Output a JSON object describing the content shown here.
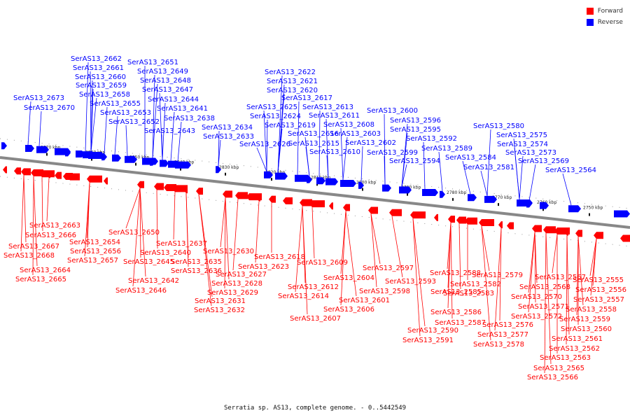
{
  "legend": {
    "forward": {
      "label": "Forward",
      "color": "#ff0000"
    },
    "reverse": {
      "label": "Reverse",
      "color": "#0000ff"
    }
  },
  "caption": "Serratia sp. AS13, complete genome. - 0..5442549",
  "axis": {
    "backbone_color": "#888888",
    "ticks": [
      "2870 kbp",
      "2860 kbp",
      "2850 kbp",
      "2840 kbp",
      "2830 kbp",
      "2820 kbp",
      "2810 kbp",
      "2800 kbp",
      "2790 kbp",
      "2780 kbp",
      "2770 kbp",
      "2760 kbp",
      "2750 kbp"
    ]
  },
  "reverse_genes": [
    "SerAS13_2662",
    "SerAS13_2661",
    "SerAS13_2660",
    "SerAS13_2659",
    "SerAS13_2658",
    "SerAS13_2655",
    "SerAS13_2653",
    "SerAS13_2652",
    "SerAS13_2651",
    "SerAS13_2649",
    "SerAS13_2648",
    "SerAS13_2647",
    "SerAS13_2644",
    "SerAS13_2641",
    "SerAS13_2638",
    "SerAS13_2643",
    "SerAS13_2634",
    "SerAS13_2633",
    "SerAS13_2673",
    "SerAS13_2670",
    "SerAS13_2622",
    "SerAS13_2621",
    "SerAS13_2620",
    "SerAS13_2617",
    "SerAS13_2625",
    "SerAS13_2613",
    "SerAS13_2624",
    "SerAS13_2611",
    "SerAS13_2619",
    "SerAS13_2608",
    "SerAS13_2616",
    "SerAS13_2603",
    "SerAS13_2626",
    "SerAS13_2615",
    "SerAS13_2602",
    "SerAS13_2610",
    "SerAS13_2600",
    "SerAS13_2596",
    "SerAS13_2595",
    "SerAS13_2592",
    "SerAS13_2589",
    "SerAS13_2599",
    "SerAS13_2594",
    "SerAS13_2584",
    "SerAS13_2581",
    "SerAS13_2580",
    "SerAS13_2575",
    "SerAS13_2574",
    "SerAS13_2573",
    "SerAS13_2569",
    "SerAS13_2564"
  ],
  "forward_genes": [
    "SerAS13_2663",
    "SerAS13_2666",
    "SerAS13_2667",
    "SerAS13_2668",
    "SerAS13_2664",
    "SerAS13_2665",
    "SerAS13_2654",
    "SerAS13_2656",
    "SerAS13_2657",
    "SerAS13_2650",
    "SerAS13_2637",
    "SerAS13_2640",
    "SerAS13_2645",
    "SerAS13_2635",
    "SerAS13_2636",
    "SerAS13_2642",
    "SerAS13_2646",
    "SerAS13_2630",
    "SerAS13_2627",
    "SerAS13_2628",
    "SerAS13_2629",
    "SerAS13_2631",
    "SerAS13_2632",
    "SerAS13_2618",
    "SerAS13_2623",
    "SerAS13_2609",
    "SerAS13_2604",
    "SerAS13_2612",
    "SerAS13_2614",
    "SerAS13_2606",
    "SerAS13_2607",
    "SerAS13_2601",
    "SerAS13_2597",
    "SerAS13_2598",
    "SerAS13_2593",
    "SerAS13_2588",
    "SerAS13_2582",
    "SerAS13_2585",
    "SerAS13_2583",
    "SerAS13_2586",
    "SerAS13_2587",
    "SerAS13_2590",
    "SerAS13_2591",
    "SerAS13_2579",
    "SerAS13_2576",
    "SerAS13_2577",
    "SerAS13_2578",
    "SerAS13_2567",
    "SerAS13_2568",
    "SerAS13_2570",
    "SerAS13_2571",
    "SerAS13_2572",
    "SerAS13_2555",
    "SerAS13_2556",
    "SerAS13_2557",
    "SerAS13_2558",
    "SerAS13_2559",
    "SerAS13_2560",
    "SerAS13_2561",
    "SerAS13_2562",
    "SerAS13_2563",
    "SerAS13_2565",
    "SerAS13_2566"
  ]
}
